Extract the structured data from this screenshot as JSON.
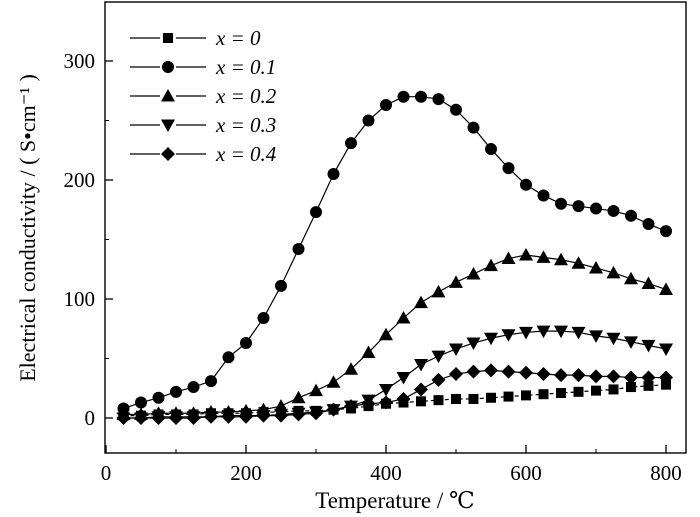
{
  "chart_data": {
    "type": "line",
    "title": "",
    "xlabel": "Temperature / ℃",
    "ylabel": "Electrical conductivity / ( S•cm⁻¹ )",
    "xlim": [
      0,
      820
    ],
    "ylim": [
      -20,
      350
    ],
    "xticks": [
      0,
      200,
      400,
      600,
      800
    ],
    "yticks": [
      0,
      100,
      200,
      300
    ],
    "grid": false,
    "legend_position": "top-left",
    "series": [
      {
        "name": "x = 0",
        "marker": "square",
        "line": "dashed",
        "x": [
          25,
          50,
          75,
          100,
          125,
          150,
          175,
          200,
          225,
          250,
          275,
          300,
          325,
          350,
          375,
          400,
          425,
          450,
          475,
          500,
          525,
          550,
          575,
          600,
          625,
          650,
          675,
          700,
          725,
          750,
          775,
          800
        ],
        "y": [
          2,
          2,
          3,
          3,
          3,
          4,
          4,
          4,
          5,
          5,
          6,
          6,
          7,
          8,
          10,
          12,
          13,
          14,
          15,
          16,
          16,
          17,
          18,
          19,
          20,
          21,
          22,
          23,
          24,
          26,
          27,
          28
        ]
      },
      {
        "name": "x = 0.1",
        "marker": "circle",
        "line": "solid",
        "x": [
          25,
          50,
          75,
          100,
          125,
          150,
          175,
          200,
          225,
          250,
          275,
          300,
          325,
          350,
          375,
          400,
          425,
          450,
          475,
          500,
          525,
          550,
          575,
          600,
          625,
          650,
          675,
          700,
          725,
          750,
          775,
          800
        ],
        "y": [
          8,
          13,
          17,
          22,
          26,
          31,
          51,
          63,
          84,
          111,
          142,
          173,
          205,
          231,
          250,
          263,
          270,
          270,
          268,
          259,
          244,
          226,
          210,
          196,
          187,
          180,
          178,
          176,
          174,
          170,
          163,
          157
        ]
      },
      {
        "name": "x = 0.2",
        "marker": "triangle-up",
        "line": "solid",
        "x": [
          25,
          50,
          75,
          100,
          125,
          150,
          175,
          200,
          225,
          250,
          275,
          300,
          325,
          350,
          375,
          400,
          425,
          450,
          475,
          500,
          525,
          550,
          575,
          600,
          625,
          650,
          675,
          700,
          725,
          750,
          775,
          800
        ],
        "y": [
          3,
          3,
          4,
          4,
          4,
          5,
          5,
          6,
          7,
          10,
          17,
          23,
          30,
          41,
          55,
          70,
          84,
          97,
          106,
          114,
          121,
          128,
          134,
          137,
          135,
          133,
          130,
          126,
          122,
          117,
          113,
          108
        ]
      },
      {
        "name": "x = 0.3",
        "marker": "triangle-down",
        "line": "solid",
        "x": [
          25,
          50,
          75,
          100,
          125,
          150,
          175,
          200,
          225,
          250,
          275,
          300,
          325,
          350,
          375,
          400,
          425,
          450,
          475,
          500,
          525,
          550,
          575,
          600,
          625,
          650,
          675,
          700,
          725,
          750,
          775,
          800
        ],
        "y": [
          0,
          0,
          1,
          1,
          1,
          1,
          2,
          2,
          2,
          3,
          4,
          5,
          7,
          10,
          15,
          24,
          34,
          45,
          52,
          58,
          63,
          67,
          70,
          72,
          73,
          73,
          72,
          69,
          67,
          64,
          61,
          58
        ]
      },
      {
        "name": "x = 0.4",
        "marker": "diamond",
        "line": "solid",
        "x": [
          25,
          50,
          75,
          100,
          125,
          150,
          175,
          200,
          225,
          250,
          275,
          300,
          325,
          350,
          375,
          400,
          425,
          450,
          475,
          500,
          525,
          550,
          575,
          600,
          625,
          650,
          675,
          700,
          725,
          750,
          775,
          800
        ],
        "y": [
          0,
          0,
          0,
          0,
          0,
          1,
          1,
          1,
          2,
          2,
          3,
          4,
          7,
          10,
          12,
          13,
          16,
          24,
          32,
          37,
          39,
          40,
          39,
          38,
          37,
          36,
          36,
          35,
          35,
          34,
          34,
          34
        ]
      }
    ]
  }
}
